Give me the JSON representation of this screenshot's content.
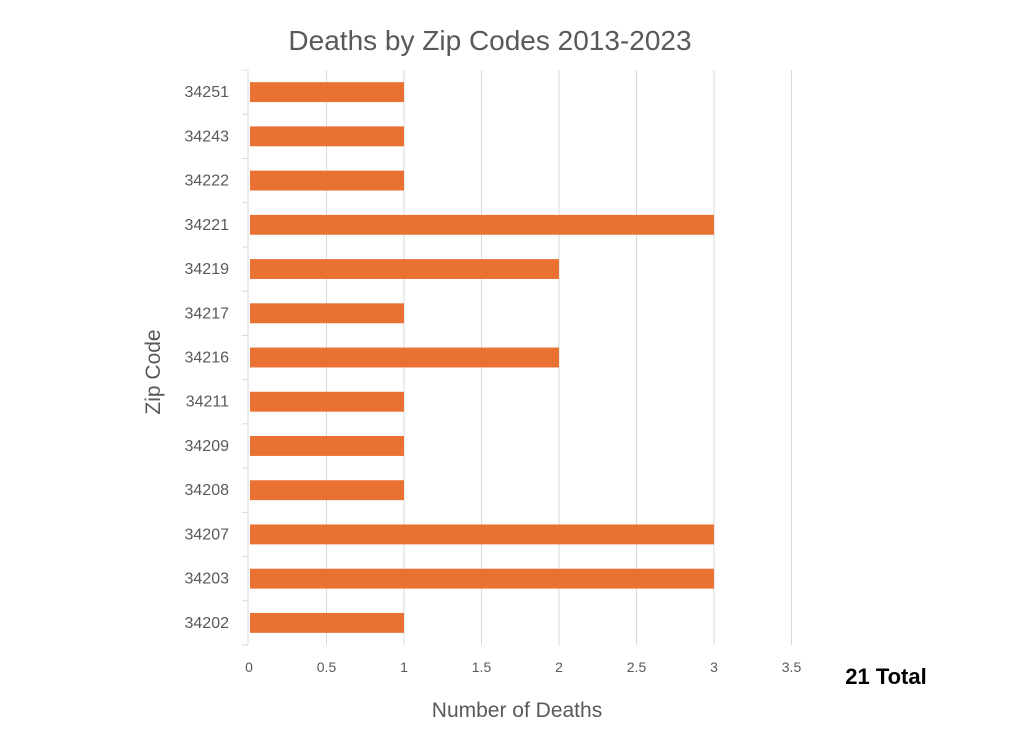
{
  "chart_data": {
    "type": "bar",
    "orientation": "horizontal",
    "title": "Deaths by Zip Codes 2013-2023",
    "xlabel": "Number of Deaths",
    "ylabel": "Zip Code",
    "categories": [
      "34251",
      "34243",
      "34222",
      "34221",
      "34219",
      "34217",
      "34216",
      "34211",
      "34209",
      "34208",
      "34207",
      "34203",
      "34202"
    ],
    "values": [
      1,
      1,
      1,
      3,
      2,
      1,
      2,
      1,
      1,
      1,
      3,
      3,
      1
    ],
    "xlim": [
      0,
      3.5
    ],
    "xticks": [
      "0",
      "0.5",
      "1",
      "1.5",
      "2",
      "2.5",
      "3",
      "3.5"
    ],
    "grid": true,
    "bar_color": "#E97132",
    "annotation": "21 Total"
  }
}
